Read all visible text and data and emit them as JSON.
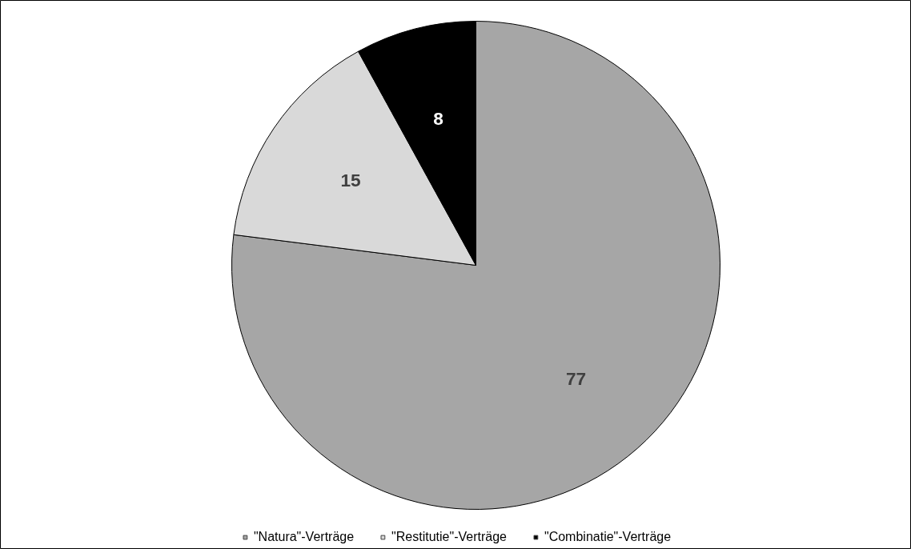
{
  "chart_data": {
    "type": "pie",
    "categories": [
      "\"Natura\"-Verträge",
      "\"Restitutie\"-Verträge",
      "\"Combinatie\"-Verträge"
    ],
    "values": [
      77,
      15,
      8
    ],
    "colors": [
      "#a6a6a6",
      "#d9d9d9",
      "#000000"
    ],
    "data_labels": true,
    "legend": "bottom"
  }
}
